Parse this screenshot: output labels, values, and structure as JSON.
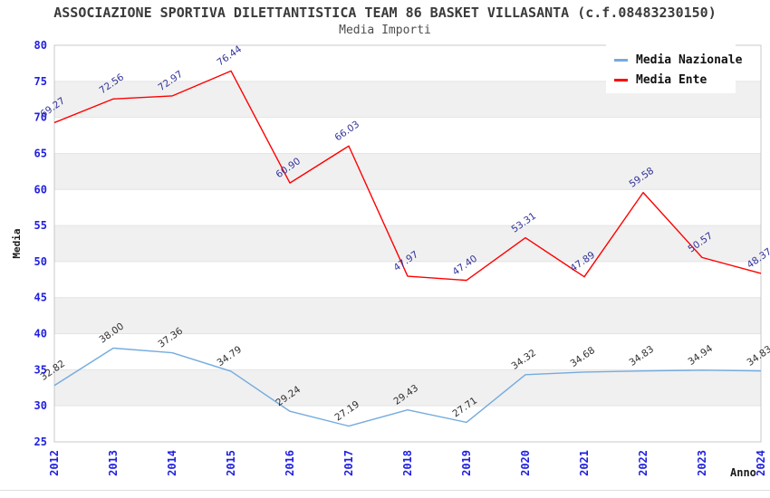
{
  "chart_data": {
    "type": "line",
    "title": "ASSOCIAZIONE SPORTIVA DILETTANTISTICA TEAM 86 BASKET VILLASANTA (c.f.08483230150)",
    "subtitle": "Media Importi",
    "xlabel": "Anno",
    "ylabel": "Media",
    "categories": [
      "2012",
      "2013",
      "2014",
      "2015",
      "2016",
      "2017",
      "2018",
      "2019",
      "2020",
      "2021",
      "2022",
      "2023",
      "2024"
    ],
    "series": [
      {
        "name": "Media Nazionale",
        "color": "#74abdf",
        "label_color": "#303030",
        "values": [
          32.82,
          38.0,
          37.36,
          34.79,
          29.24,
          27.19,
          29.43,
          27.71,
          34.32,
          34.68,
          34.83,
          34.94,
          34.83
        ]
      },
      {
        "name": "Media Ente",
        "color": "#ff0000",
        "label_color": "#333399",
        "values": [
          69.27,
          72.56,
          72.97,
          76.44,
          60.9,
          66.03,
          47.97,
          47.4,
          53.31,
          47.89,
          59.58,
          50.57,
          48.37
        ]
      }
    ],
    "ylim": [
      25,
      80
    ],
    "ytick_step": 5,
    "grid": "horizontal-bands",
    "legend_position": "top-right",
    "band_color": "#f0f0f0",
    "gridline_color": "#e4e4e4",
    "border_color": "#c8c8c8",
    "tick_label_color": "#1f1fe0",
    "data_label_rotation_deg": -35,
    "data_label_format": "0.00"
  }
}
